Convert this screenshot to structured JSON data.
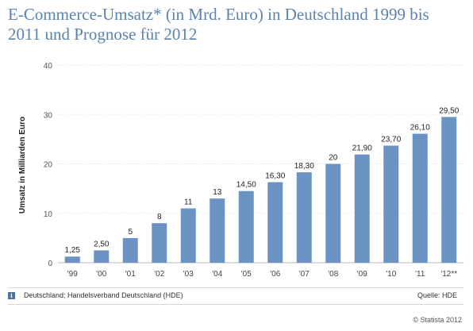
{
  "chart_data": {
    "type": "bar",
    "title": "E-Commerce-Umsatz* (in Mrd. Euro) in Deutschland 1999 bis 2011 und Prognose für 2012",
    "ylabel": "Umsatz in Milliarden Euro",
    "xlabel": "",
    "categories": [
      "'99",
      "'00",
      "'01",
      "'02",
      "'03",
      "'04",
      "'05",
      "'06",
      "'07",
      "'08",
      "'09",
      "'10",
      "'11",
      "'12**"
    ],
    "values": [
      1.25,
      2.5,
      5,
      8,
      11,
      13,
      14.5,
      16.3,
      18.3,
      20,
      21.9,
      23.7,
      26.1,
      29.5
    ],
    "value_labels": [
      "1,25",
      "2,50",
      "5",
      "8",
      "11",
      "13",
      "14,50",
      "16,30",
      "18,30",
      "20",
      "21,90",
      "23,70",
      "26,10",
      "29,50"
    ],
    "ylim": [
      0,
      40
    ],
    "yticks": [
      0,
      10,
      20,
      30,
      40
    ],
    "grid": true,
    "bar_color": "#6a93c3"
  },
  "footer": {
    "note": "Deutschland; Handelsverband Deutschland (HDE)",
    "source": "Quelle: HDE",
    "copyright": "© Statista 2012",
    "info_icon": "i"
  }
}
